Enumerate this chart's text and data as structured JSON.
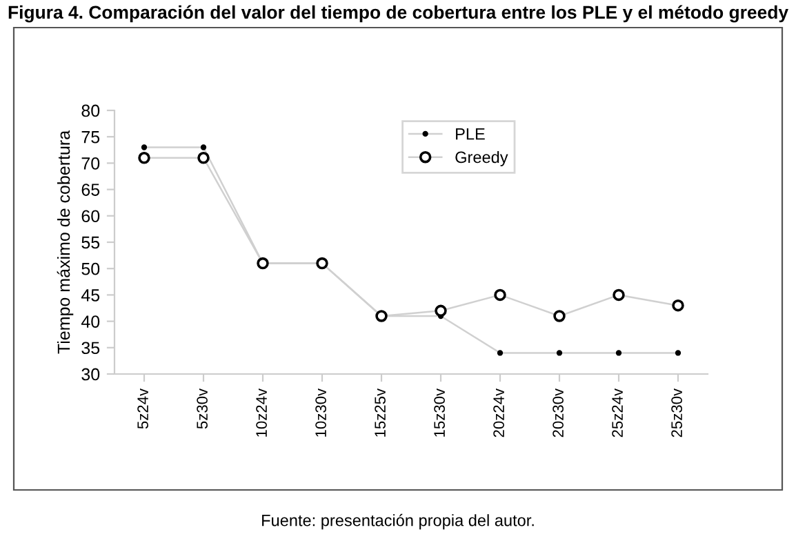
{
  "chart_data": {
    "type": "line",
    "title": "Figura 4. Comparación del valor del tiempo de cobertura entre los PLE y el método greedy",
    "ylabel": "Tiempo máximo de cobertura",
    "categories": [
      "5z24v",
      "5z30v",
      "10z24v",
      "10z30v",
      "15z25v",
      "15z30v",
      "20z24v",
      "20z30v",
      "25z24v",
      "25z30v"
    ],
    "series": [
      {
        "name": "PLE",
        "color": "#d0d0d0",
        "marker": "circle",
        "values": [
          73,
          73,
          51,
          51,
          41,
          41,
          34,
          34,
          34,
          34
        ]
      },
      {
        "name": "Greedy",
        "color": "#d0d0d0",
        "marker": "circle",
        "values": [
          71,
          71,
          51,
          51,
          41,
          42,
          45,
          41,
          45,
          43
        ]
      }
    ],
    "ylim": [
      30,
      80
    ],
    "yticks": [
      30,
      35,
      40,
      45,
      50,
      55,
      60,
      65,
      70,
      75,
      80
    ],
    "grid": false,
    "legend": "top",
    "line_style": "solid",
    "annotations": [
      "Fuente: presentación propia del autor."
    ]
  }
}
